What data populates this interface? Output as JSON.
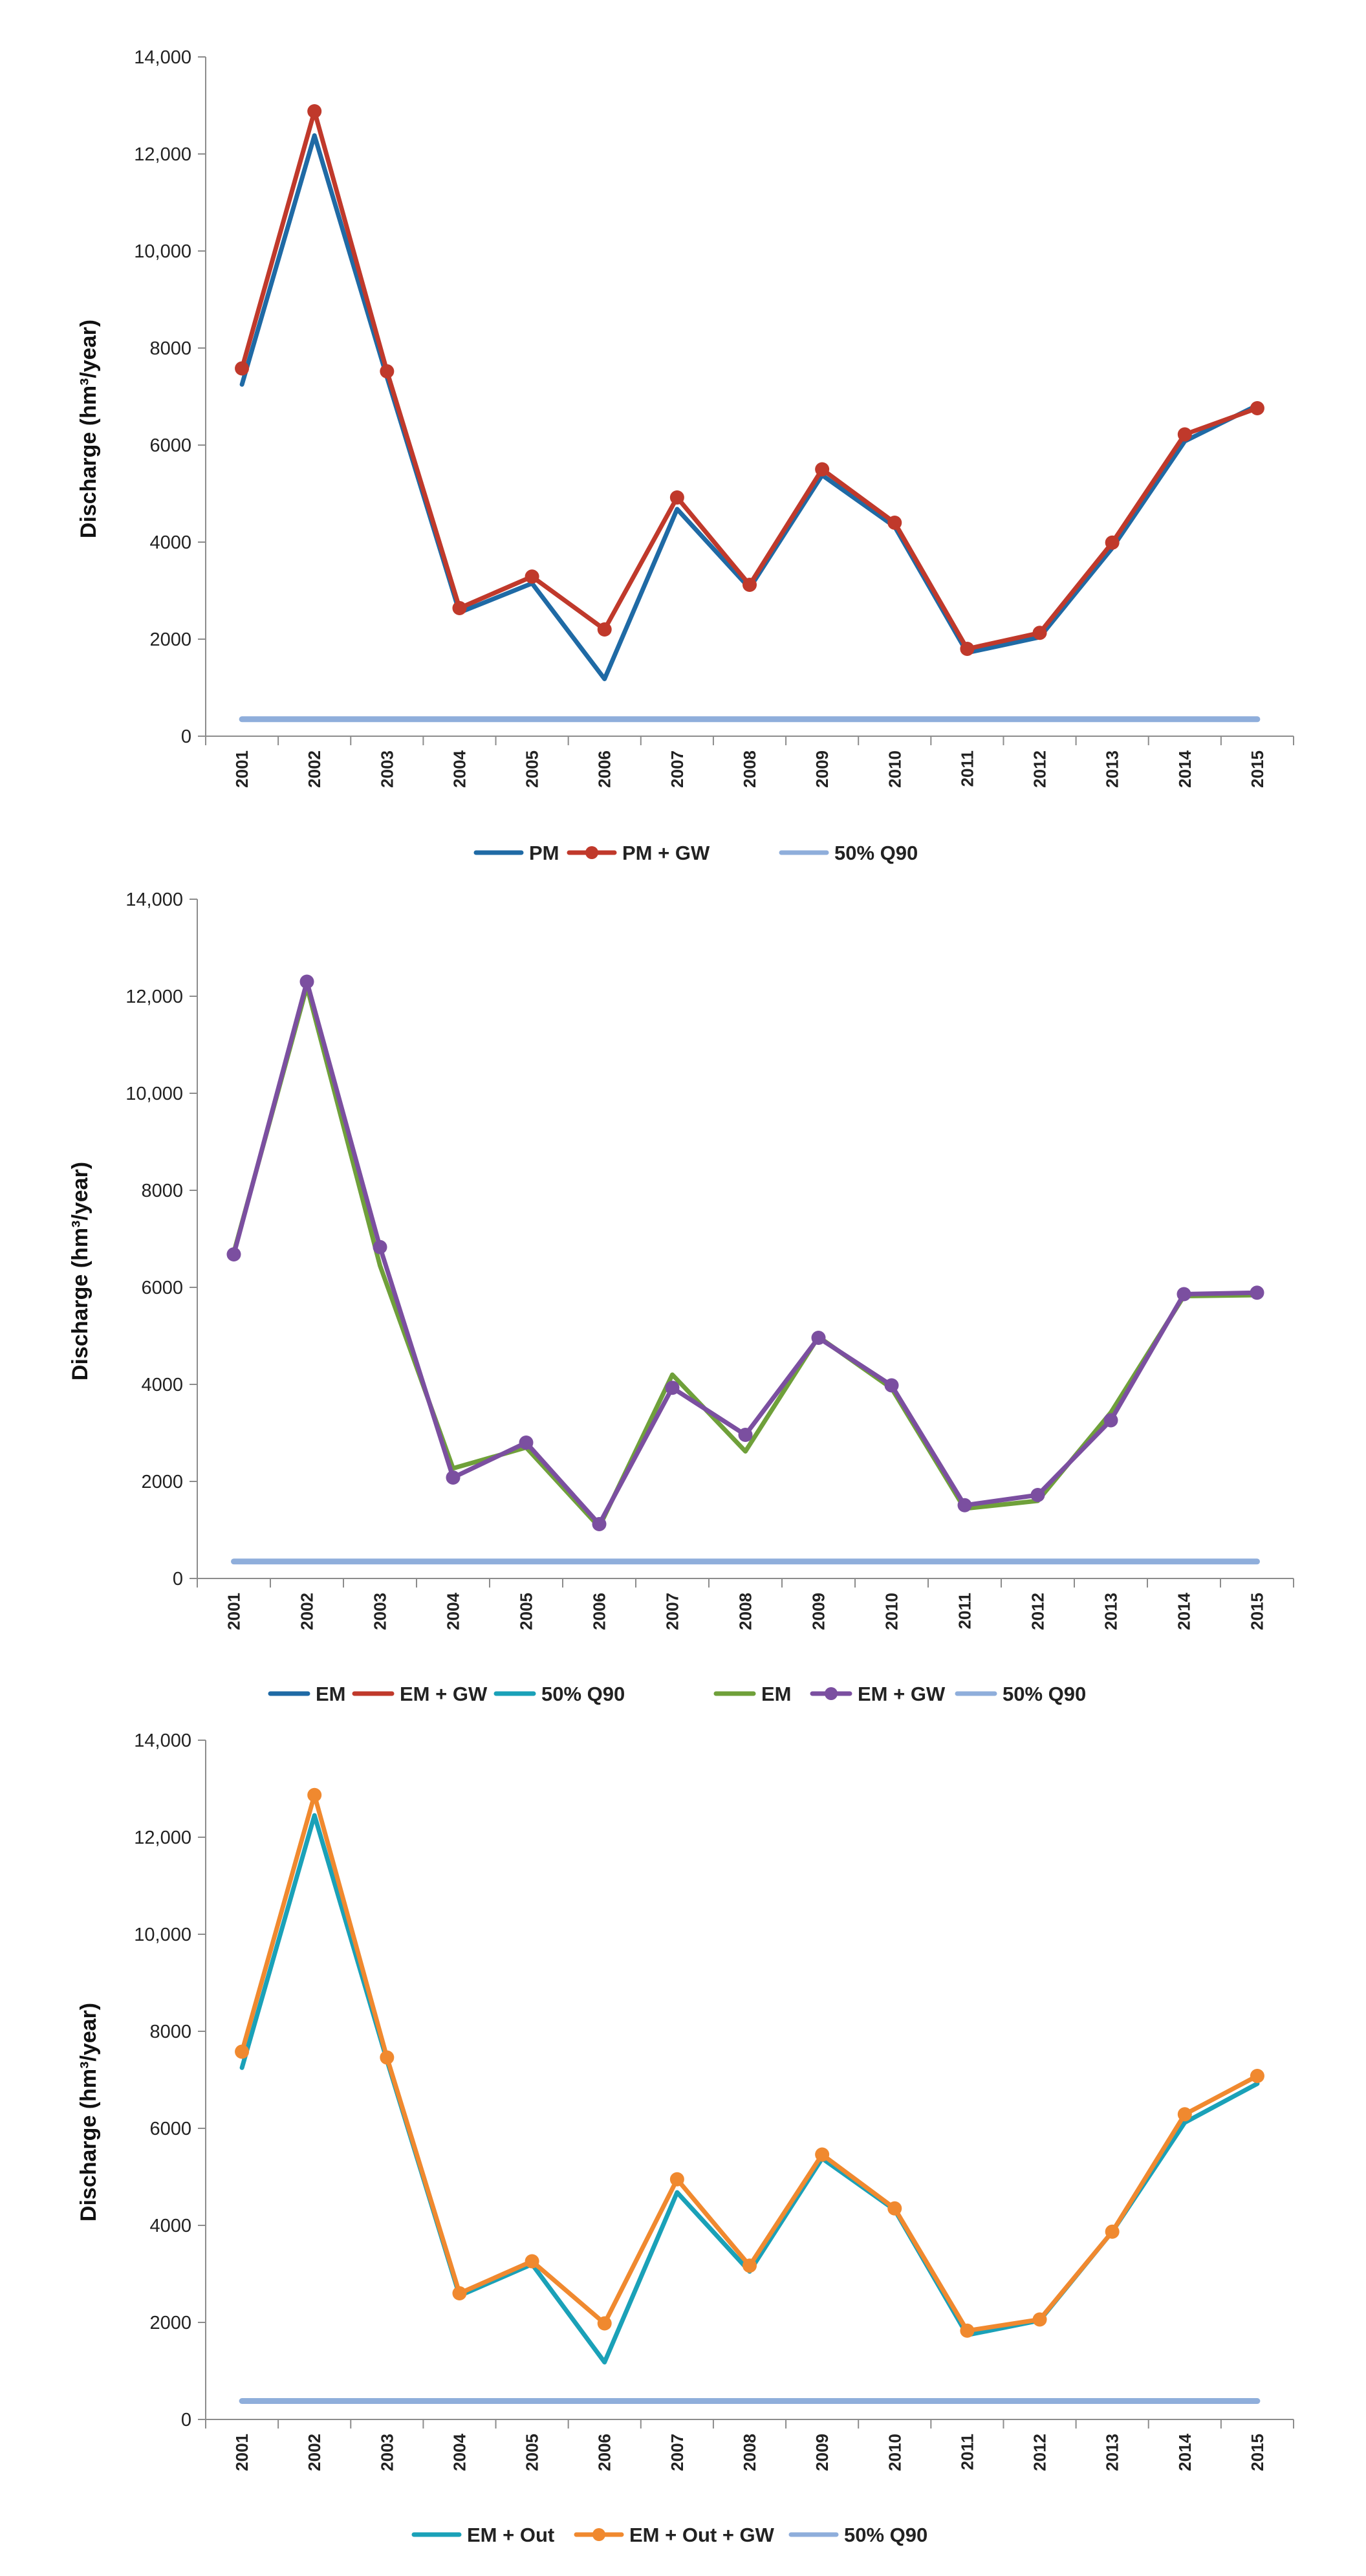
{
  "chart_data": [
    {
      "type": "line",
      "ylabel": "Discharge (hm³/year)",
      "xlabel": "",
      "ylim": [
        0,
        14000
      ],
      "y_ticks": [
        0,
        2000,
        4000,
        6000,
        8000,
        10000,
        12000,
        14000
      ],
      "y_tick_labels": [
        "0",
        "2000",
        "4000",
        "6000",
        "8000",
        "10,000",
        "12,000",
        "14,000"
      ],
      "categories": [
        "2001",
        "2002",
        "2003",
        "2004",
        "2005",
        "2006",
        "2007",
        "2008",
        "2009",
        "2010",
        "2011",
        "2012",
        "2013",
        "2014",
        "2015"
      ],
      "grid": false,
      "legend_position": "bottom",
      "legend": [
        "PM",
        "PM + GW",
        "50% Q90"
      ],
      "series": [
        {
          "name": "PM",
          "color": "#1f6aa5",
          "markers": false,
          "values": [
            7250,
            12380,
            7400,
            2550,
            3150,
            1180,
            4680,
            3050,
            5380,
            4320,
            1720,
            2040,
            3880,
            6080,
            6820
          ]
        },
        {
          "name": "PM + GW",
          "color": "#c0392b",
          "markers": true,
          "values": [
            7580,
            12880,
            7520,
            2640,
            3290,
            2200,
            4920,
            3120,
            5500,
            4400,
            1800,
            2130,
            3990,
            6220,
            6760
          ]
        },
        {
          "name": "50% Q90",
          "color": "#8faedb",
          "markers": false,
          "values": [
            350,
            350,
            350,
            350,
            350,
            350,
            350,
            350,
            350,
            350,
            350,
            350,
            350,
            350,
            350
          ]
        }
      ]
    },
    {
      "type": "line",
      "ylabel": "Discharge (hm³/year)",
      "xlabel": "",
      "ylim": [
        0,
        14000
      ],
      "y_ticks": [
        0,
        2000,
        4000,
        6000,
        8000,
        10000,
        12000,
        14000
      ],
      "y_tick_labels": [
        "0",
        "2000",
        "4000",
        "6000",
        "8000",
        "10,000",
        "12,000",
        "14,000"
      ],
      "categories": [
        "2001",
        "2002",
        "2003",
        "2004",
        "2005",
        "2006",
        "2007",
        "2008",
        "2009",
        "2010",
        "2011",
        "2012",
        "2013",
        "2014",
        "2015"
      ],
      "grid": false,
      "legend_position": "bottom",
      "legend": [
        "EM",
        "EM + GW",
        "50% Q90",
        "EM",
        "EM + GW",
        "50% Q90"
      ],
      "legend_colors": [
        "#1f6aa5",
        "#c0392b",
        "#1aa1b8",
        "#6fa03a",
        "#7b4fa0",
        "#8faedb"
      ],
      "legend_markers": [
        false,
        false,
        false,
        false,
        true,
        false
      ],
      "series": [
        {
          "name": "EM",
          "color": "#6fa03a",
          "markers": false,
          "values": [
            6720,
            12200,
            6450,
            2270,
            2700,
            1060,
            4200,
            2620,
            4980,
            3920,
            1440,
            1600,
            3420,
            5820,
            5840
          ]
        },
        {
          "name": "EM + GW",
          "color": "#7b4fa0",
          "markers": true,
          "values": [
            6680,
            12300,
            6830,
            2080,
            2800,
            1120,
            3930,
            2960,
            4960,
            3980,
            1510,
            1720,
            3260,
            5860,
            5890
          ]
        },
        {
          "name": "50% Q90",
          "color": "#8faedb",
          "markers": false,
          "values": [
            350,
            350,
            350,
            350,
            350,
            350,
            350,
            350,
            350,
            350,
            350,
            350,
            350,
            350,
            350
          ]
        }
      ]
    },
    {
      "type": "line",
      "ylabel": "Discharge (hm³/year)",
      "xlabel": "",
      "ylim": [
        0,
        14000
      ],
      "y_ticks": [
        0,
        2000,
        4000,
        6000,
        8000,
        10000,
        12000,
        14000
      ],
      "y_tick_labels": [
        "0",
        "2000",
        "4000",
        "6000",
        "8000",
        "10,000",
        "12,000",
        "14,000"
      ],
      "categories": [
        "2001",
        "2002",
        "2003",
        "2004",
        "2005",
        "2006",
        "2007",
        "2008",
        "2009",
        "2010",
        "2011",
        "2012",
        "2013",
        "2014",
        "2015"
      ],
      "grid": false,
      "legend_position": "bottom",
      "legend": [
        "EM + Out",
        "EM + Out + GW",
        "50% Q90"
      ],
      "series": [
        {
          "name": "EM + Out",
          "color": "#1aa1b8",
          "markers": false,
          "values": [
            7250,
            12450,
            7400,
            2550,
            3200,
            1180,
            4680,
            3050,
            5380,
            4320,
            1740,
            2040,
            3870,
            6120,
            6920
          ]
        },
        {
          "name": "EM + Out + GW",
          "color": "#f0892f",
          "markers": true,
          "values": [
            7580,
            12870,
            7460,
            2600,
            3260,
            1980,
            4950,
            3170,
            5460,
            4350,
            1830,
            2060,
            3870,
            6290,
            7080
          ]
        },
        {
          "name": "50% Q90",
          "color": "#8faedb",
          "markers": false,
          "values": [
            380,
            380,
            380,
            380,
            380,
            380,
            380,
            380,
            380,
            380,
            380,
            380,
            380,
            380,
            380
          ]
        }
      ]
    }
  ]
}
